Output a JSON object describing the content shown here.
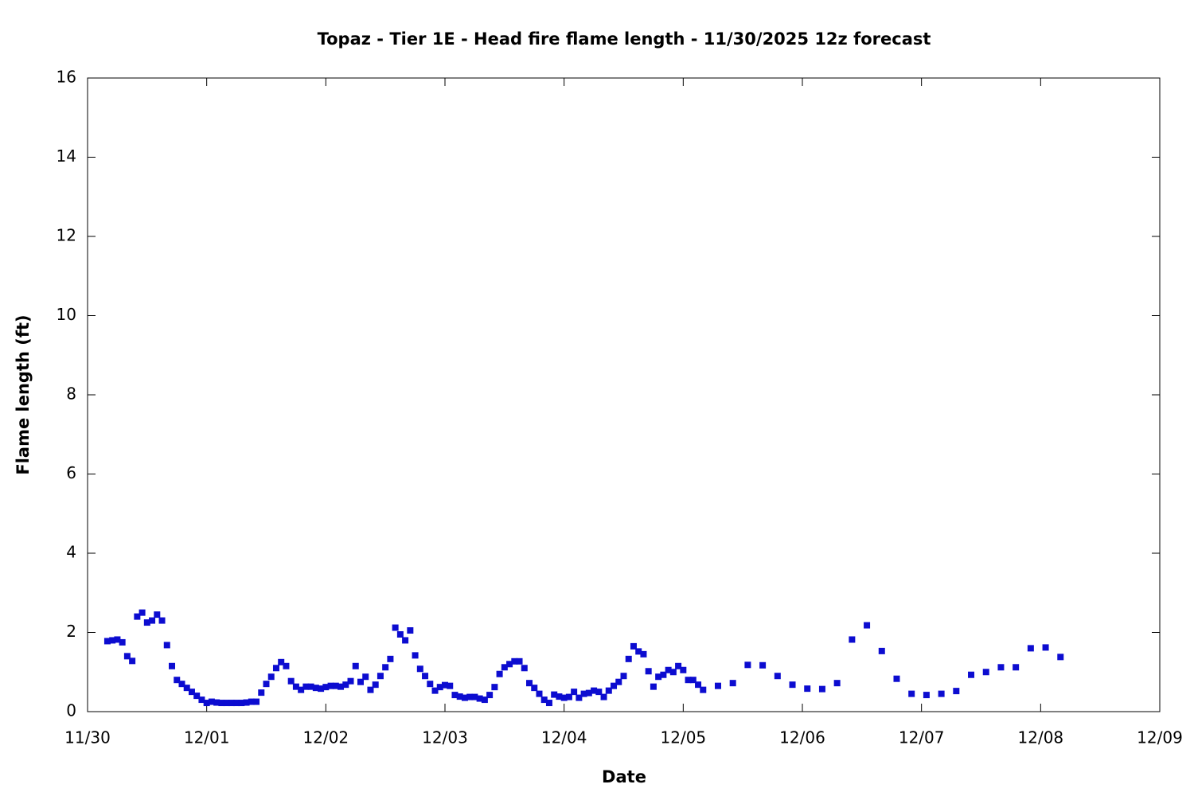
{
  "chart_data": {
    "type": "scatter",
    "title": "Topaz - Tier 1E - Head fire flame length - 11/30/2025 12z forecast",
    "x_label": "Date",
    "y_label": "Flame length (ft)",
    "xlim": [
      0,
      216
    ],
    "xticks": [
      {
        "value": 0,
        "label": "11/30"
      },
      {
        "value": 24,
        "label": "12/01"
      },
      {
        "value": 48,
        "label": "12/02"
      },
      {
        "value": 72,
        "label": "12/03"
      },
      {
        "value": 96,
        "label": "12/04"
      },
      {
        "value": 120,
        "label": "12/05"
      },
      {
        "value": 144,
        "label": "12/06"
      },
      {
        "value": 168,
        "label": "12/07"
      },
      {
        "value": 192,
        "label": "12/08"
      },
      {
        "value": 216,
        "label": "12/09"
      }
    ],
    "ylim": [
      0,
      16
    ],
    "yticks": [
      0,
      2,
      4,
      6,
      8,
      10,
      12,
      14,
      16
    ],
    "color": "#0c0cd0",
    "x": [
      4,
      5,
      6,
      7,
      8,
      9,
      10,
      11,
      12,
      13,
      14,
      15,
      16,
      17,
      18,
      19,
      20,
      21,
      22,
      23,
      24,
      25,
      26,
      27,
      28,
      29,
      30,
      31,
      32,
      33,
      34,
      35,
      36,
      37,
      38,
      39,
      40,
      41,
      42,
      43,
      44,
      45,
      46,
      47,
      48,
      49,
      50,
      51,
      52,
      53,
      54,
      55,
      56,
      57,
      58,
      59,
      60,
      61,
      62,
      63,
      64,
      65,
      66,
      67,
      68,
      69,
      70,
      71,
      72,
      73,
      74,
      75,
      76,
      77,
      78,
      79,
      80,
      81,
      82,
      83,
      84,
      85,
      86,
      87,
      88,
      89,
      90,
      91,
      92,
      93,
      94,
      95,
      96,
      97,
      98,
      99,
      100,
      101,
      102,
      103,
      104,
      105,
      106,
      107,
      108,
      109,
      110,
      111,
      112,
      113,
      114,
      115,
      116,
      117,
      118,
      119,
      120,
      121,
      122,
      123,
      124,
      127,
      130,
      133,
      136,
      139,
      142,
      145,
      148,
      151,
      154,
      157,
      160,
      163,
      166,
      169,
      172,
      175,
      178,
      181,
      184,
      187,
      190,
      193,
      196
    ],
    "values": [
      1.78,
      1.8,
      1.82,
      1.75,
      1.4,
      1.28,
      2.4,
      2.5,
      2.25,
      2.3,
      2.45,
      2.3,
      1.68,
      1.15,
      0.8,
      0.7,
      0.6,
      0.5,
      0.4,
      0.3,
      0.22,
      0.25,
      0.23,
      0.22,
      0.22,
      0.22,
      0.22,
      0.22,
      0.23,
      0.25,
      0.25,
      0.48,
      0.7,
      0.88,
      1.1,
      1.25,
      1.15,
      0.77,
      0.63,
      0.55,
      0.63,
      0.63,
      0.6,
      0.58,
      0.62,
      0.65,
      0.65,
      0.63,
      0.68,
      0.77,
      1.15,
      0.75,
      0.88,
      0.55,
      0.68,
      0.9,
      1.12,
      1.33,
      2.12,
      1.95,
      1.8,
      2.05,
      1.42,
      1.08,
      0.9,
      0.7,
      0.53,
      0.62,
      0.67,
      0.65,
      0.42,
      0.38,
      0.35,
      0.37,
      0.37,
      0.33,
      0.3,
      0.42,
      0.62,
      0.95,
      1.12,
      1.2,
      1.27,
      1.27,
      1.1,
      0.72,
      0.6,
      0.45,
      0.3,
      0.22,
      0.43,
      0.38,
      0.35,
      0.37,
      0.5,
      0.35,
      0.45,
      0.47,
      0.53,
      0.5,
      0.37,
      0.53,
      0.65,
      0.75,
      0.9,
      1.33,
      1.65,
      1.52,
      1.45,
      1.02,
      0.63,
      0.88,
      0.93,
      1.05,
      1.0,
      1.15,
      1.05,
      0.8,
      0.8,
      0.68,
      0.55,
      0.65,
      0.72,
      1.18,
      1.17,
      0.9,
      0.68,
      0.58,
      0.57,
      0.72,
      1.82,
      2.18,
      1.53,
      0.83,
      0.45,
      0.42,
      0.45,
      0.52,
      0.93,
      1.0,
      1.12,
      1.12,
      1.6,
      1.62,
      1.38
    ]
  }
}
